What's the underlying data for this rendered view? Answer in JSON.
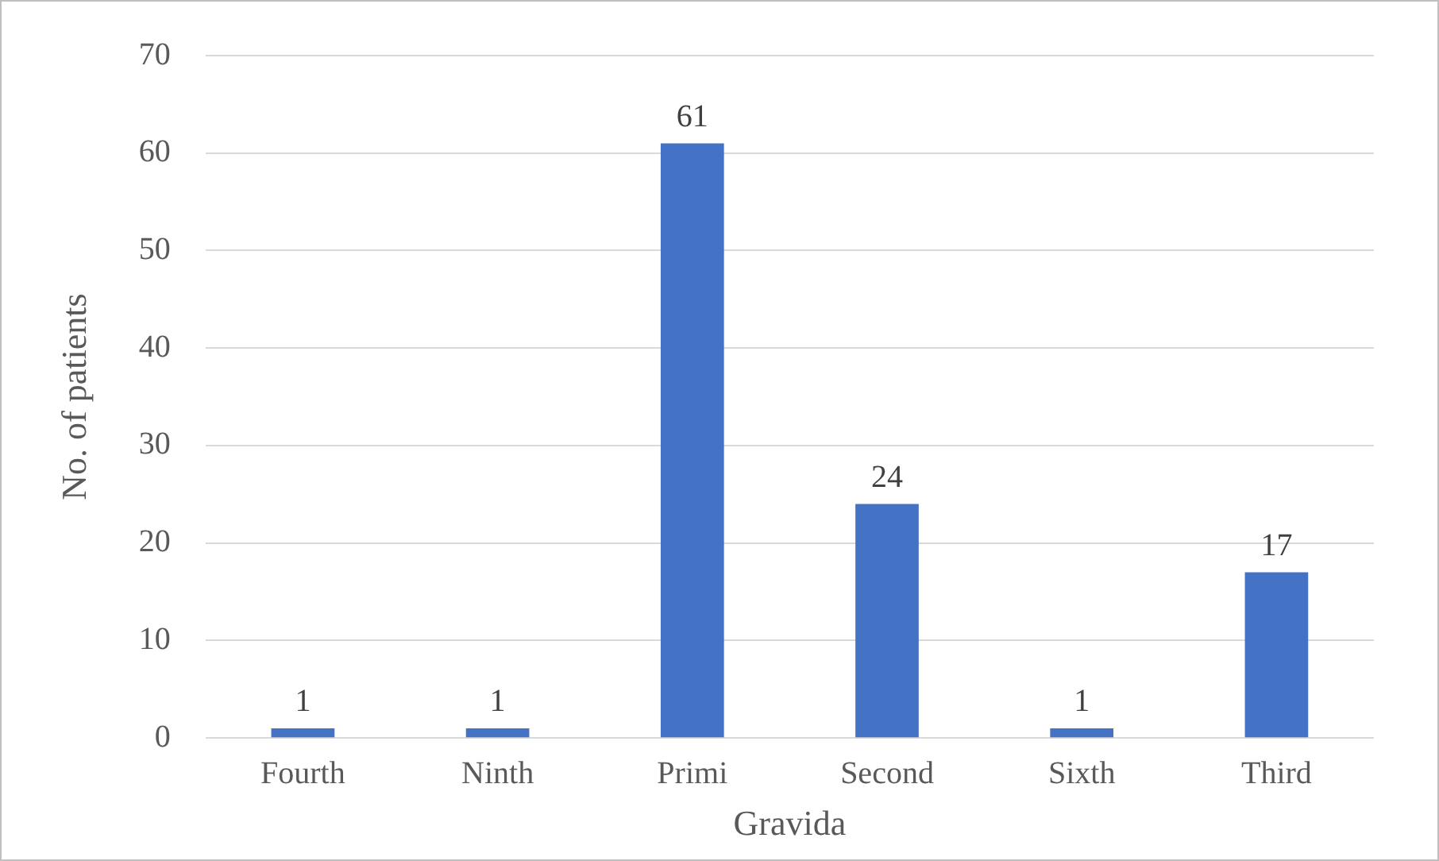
{
  "chart_data": {
    "type": "bar",
    "xlabel": "Gravida",
    "ylabel": "No. of patients",
    "categories": [
      "Fourth",
      "Ninth",
      "Primi",
      "Second",
      "Sixth",
      "Third"
    ],
    "values": [
      1,
      1,
      61,
      24,
      1,
      17
    ],
    "color": "#4472c4",
    "ylim": [
      0,
      70
    ],
    "yticks": [
      0,
      10,
      20,
      30,
      40,
      50,
      60,
      70
    ],
    "grid": "y",
    "data_labels": true
  }
}
